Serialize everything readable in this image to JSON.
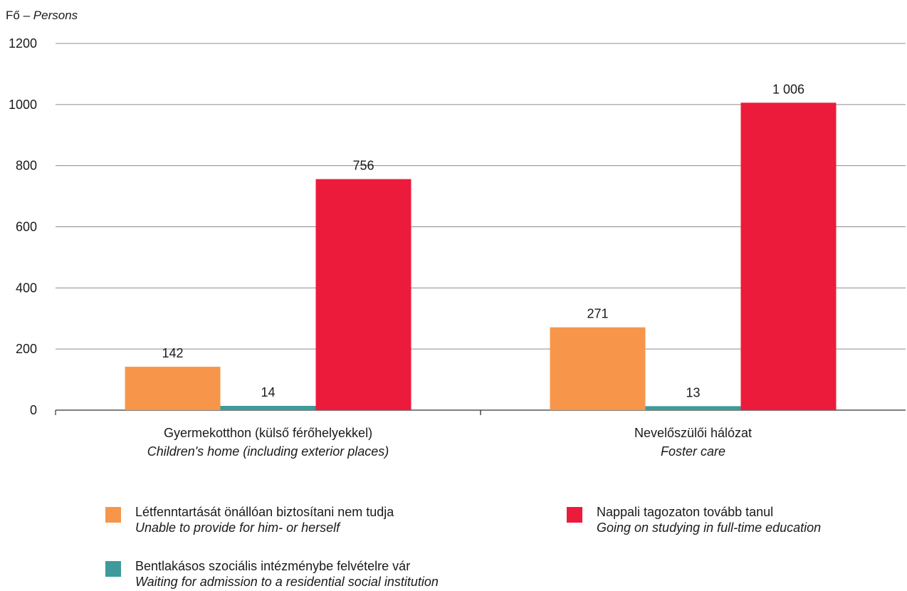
{
  "unit_label": {
    "hu": "Fő",
    "sep": "–",
    "en": "Persons"
  },
  "colors": {
    "orange": "#F7964A",
    "teal": "#3E9A9B",
    "red": "#ED1B3B",
    "grid": "#8c8c8c",
    "axis": "#333333"
  },
  "chart_data": {
    "type": "bar",
    "categories": [
      {
        "hu": "Gyermekotthon (külső férőhelyekkel)",
        "en": "Children's home  (including exterior places)"
      },
      {
        "hu": "Nevelőszülői hálózat",
        "en": "Foster care"
      }
    ],
    "series": [
      {
        "name_hu": "Létfenntartását önállóan biztosítani nem tudja",
        "name_en": "Unable to provide for him- or herself",
        "color": "#F7964A",
        "values": [
          142,
          271
        ],
        "labels": [
          "142",
          "271"
        ]
      },
      {
        "name_hu": "Bentlakásos szociális intézménybe felvételre vár",
        "name_en": "Waiting for admission to a residential social institution",
        "color": "#3E9A9B",
        "values": [
          14,
          13
        ],
        "labels": [
          "14",
          "13"
        ]
      },
      {
        "name_hu": "Nappali tagozaton tovább tanul",
        "name_en": "Going on studying in full-time education",
        "color": "#ED1B3B",
        "values": [
          756,
          1006
        ],
        "labels": [
          "756",
          "1 006"
        ]
      }
    ],
    "ylim": [
      0,
      1200
    ],
    "yticks": [
      0,
      200,
      400,
      600,
      800,
      1000,
      1200
    ],
    "grid": true,
    "legend_position": "bottom"
  }
}
